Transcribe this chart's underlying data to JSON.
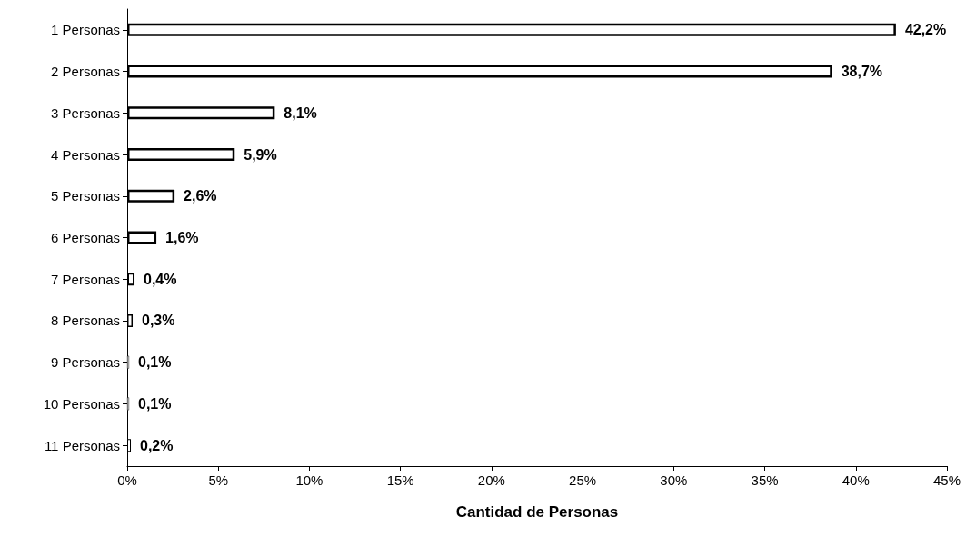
{
  "chart_data": {
    "type": "bar",
    "orientation": "horizontal",
    "xlabel": "Cantidad de Personas",
    "categories": [
      "1 Personas",
      "2 Personas",
      "3 Personas",
      "4 Personas",
      "5 Personas",
      "6 Personas",
      "7 Personas",
      "8 Personas",
      "9 Personas",
      "10 Personas",
      "11 Personas"
    ],
    "values": [
      42.2,
      38.7,
      8.1,
      5.9,
      2.6,
      1.6,
      0.4,
      0.3,
      0.1,
      0.1,
      0.2
    ],
    "value_labels": [
      "42,2%",
      "38,7%",
      "8,1%",
      "5,9%",
      "2,6%",
      "1,6%",
      "0,4%",
      "0,3%",
      "0,1%",
      "0,1%",
      "0,2%"
    ],
    "color": "#ffffff",
    "xlim": [
      0,
      45
    ],
    "xticks": [
      {
        "value": 0,
        "label": "0%"
      },
      {
        "value": 5,
        "label": "5%"
      },
      {
        "value": 10,
        "label": "10%"
      },
      {
        "value": 15,
        "label": "15%"
      },
      {
        "value": 20,
        "label": "20%"
      },
      {
        "value": 25,
        "label": "25%"
      },
      {
        "value": 30,
        "label": "30%"
      },
      {
        "value": 35,
        "label": "35%"
      },
      {
        "value": 40,
        "label": "40%"
      },
      {
        "value": 45,
        "label": "45%"
      }
    ],
    "grid": false
  }
}
